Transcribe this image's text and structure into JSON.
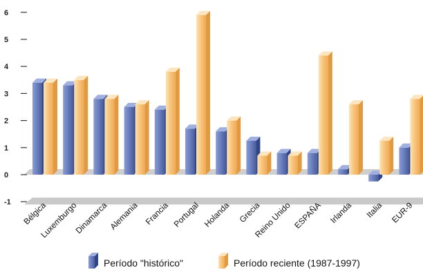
{
  "chart_data": {
    "type": "bar",
    "title": "",
    "xlabel": "",
    "ylabel": "",
    "ylim": [
      -1,
      6
    ],
    "yticks": [
      "-1",
      "0",
      "1",
      "2",
      "3",
      "4",
      "5",
      "6"
    ],
    "categories": [
      "Bélgica",
      "Luxemburgo",
      "Dinamarca",
      "Alemania",
      "Francia",
      "Portugal",
      "Holanda",
      "Grecia",
      "Reino Unido",
      "ESPAÑA",
      "Irlanda",
      "Italia",
      "EUR-9"
    ],
    "series": [
      {
        "name": "Período \"histórico\"",
        "color": "#6b7fbe",
        "values": [
          3.4,
          3.3,
          2.8,
          2.5,
          2.4,
          1.7,
          1.6,
          1.25,
          0.8,
          0.8,
          0.2,
          -0.25,
          1.0
        ]
      },
      {
        "name": "Período reciente (1987-1997)",
        "color": "#f7c27c",
        "values": [
          3.4,
          3.5,
          2.8,
          2.6,
          3.8,
          5.9,
          2.0,
          0.7,
          0.7,
          4.4,
          2.6,
          1.25,
          2.8
        ]
      }
    ],
    "grid": false,
    "legend": "bottom"
  }
}
